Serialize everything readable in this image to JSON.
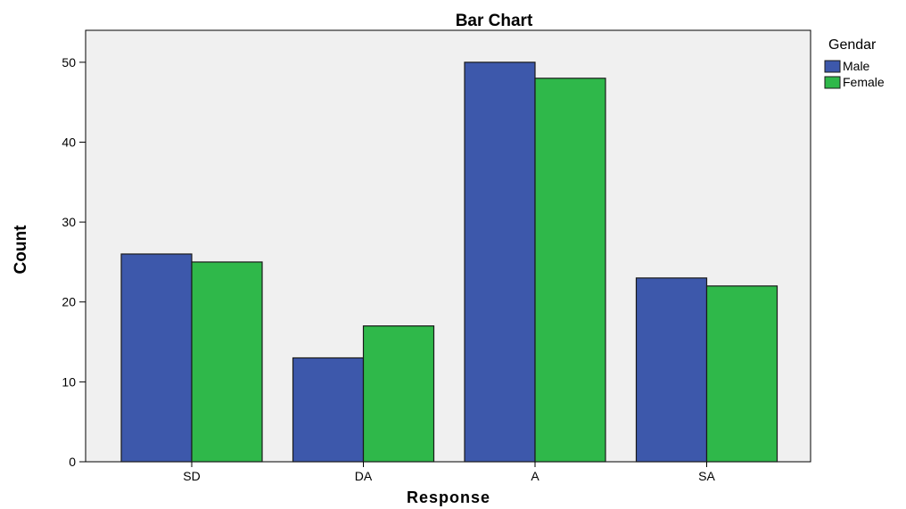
{
  "chart_data": {
    "type": "bar",
    "title": "Bar Chart",
    "xlabel": "Response",
    "ylabel": "Count",
    "categories": [
      "SD",
      "DA",
      "A",
      "SA"
    ],
    "series": [
      {
        "name": "Male",
        "values": [
          26,
          13,
          50,
          23
        ],
        "color": "#3d58ab"
      },
      {
        "name": "Female",
        "values": [
          25,
          17,
          48,
          22
        ],
        "color": "#2fb84a"
      }
    ],
    "ylim": [
      0,
      54
    ],
    "yticks": [
      0,
      10,
      20,
      30,
      40,
      50
    ],
    "legend": {
      "title": "Gendar",
      "placement": "top-right"
    },
    "plot_background": "#f0f0f0",
    "grid": false
  }
}
